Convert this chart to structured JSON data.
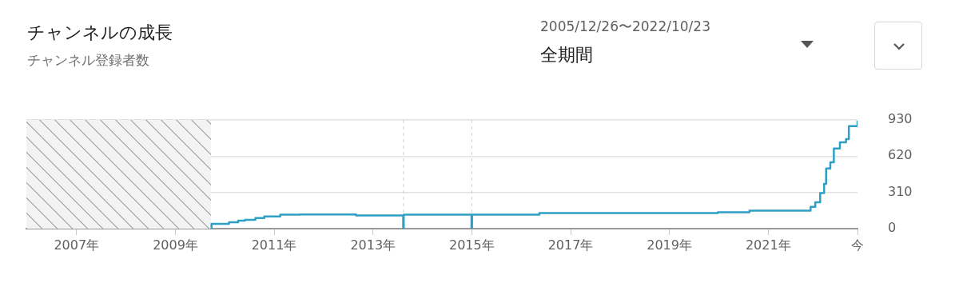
{
  "chart_data": {
    "type": "step",
    "title": "チャンネルの成長",
    "subtitle": "チャンネル登録者数",
    "annotations": [
      "2005/12/26〜2022/10/23",
      "全期間"
    ],
    "x": [
      "2009-09-20",
      "2009-09-25",
      "2010-02-01",
      "2010-04-10",
      "2010-05-30",
      "2010-08-15",
      "2010-10-20",
      "2011-02-15",
      "2011-07-10",
      "2012-08-28",
      "2013-08-12",
      "2013-08-16",
      "2014-12-30",
      "2015-01-03",
      "2016-05-15",
      "2019-12-25",
      "2020-08-15",
      "2021-11-10",
      "2021-12-15",
      "2022-01-20",
      "2022-02-18",
      "2022-03-05",
      "2022-04-05",
      "2022-05-01",
      "2022-06-15",
      "2022-07-30",
      "2022-08-20",
      "2022-10-23"
    ],
    "values": [
      0,
      41,
      55,
      68,
      75,
      90,
      105,
      120,
      122,
      112,
      0,
      120,
      0,
      120,
      133,
      141,
      154,
      186,
      225,
      304,
      383,
      514,
      567,
      685,
      738,
      766,
      877,
      923
    ],
    "color": "#2f9fc6",
    "marker": "none",
    "xlim": [
      "2005-12-26",
      "2022-10-23"
    ],
    "xticks": [
      {
        "value": "2007-01-01",
        "label": "2007年"
      },
      {
        "value": "2009-01-01",
        "label": "2009年"
      },
      {
        "value": "2011-01-01",
        "label": "2011年"
      },
      {
        "value": "2013-01-01",
        "label": "2013年"
      },
      {
        "value": "2015-01-01",
        "label": "2015年"
      },
      {
        "value": "2017-01-01",
        "label": "2017年"
      },
      {
        "value": "2019-01-01",
        "label": "2019年"
      },
      {
        "value": "2021-01-01",
        "label": "2021年"
      },
      {
        "value": "2022-10-23",
        "label": "今"
      }
    ],
    "ylim": [
      0,
      930
    ],
    "yticks": [
      0,
      310,
      620,
      930
    ],
    "grid": "y",
    "bands": [
      {
        "axis": "x",
        "from": "2005-12-26",
        "to": "2009-09-20",
        "color": "#f3f3f3"
      }
    ],
    "ref_lines": [
      {
        "axis": "x",
        "value": "2013-08-14",
        "line_style": "dashed",
        "color": "#d0d0d0"
      },
      {
        "axis": "x",
        "value": "2015-01-01",
        "line_style": "dashed",
        "color": "#d0d0d0"
      }
    ]
  }
}
